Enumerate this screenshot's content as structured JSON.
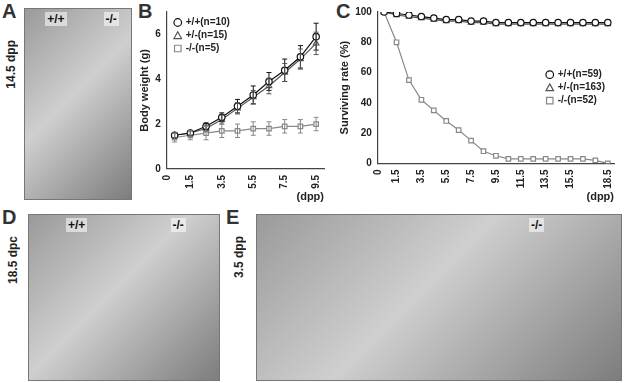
{
  "panels": [
    {
      "letter": "A",
      "caption": "14.5 dpp",
      "labels": [
        "+/+",
        "-/-"
      ]
    },
    {
      "letter": "B"
    },
    {
      "letter": "C"
    },
    {
      "letter": "D",
      "caption": "18.5 dpc",
      "labels": [
        "+/+",
        "-/-"
      ]
    },
    {
      "letter": "E",
      "caption": "3.5 dpp",
      "labels": [
        "-/-"
      ]
    }
  ],
  "chart_data": [
    {
      "type": "line",
      "y_label": "Body weight (g)",
      "x_label": "(dpp)",
      "x": [
        0.5,
        1.5,
        2.5,
        3.5,
        4.5,
        5.5,
        6.5,
        7.5,
        8.5,
        9.5
      ],
      "xlim": [
        0,
        10
      ],
      "xticks": [
        0,
        1.5,
        3.5,
        5.5,
        7.5,
        9.5
      ],
      "ylim": [
        0,
        7
      ],
      "yticks": [
        0,
        2,
        4,
        6
      ],
      "grid": false,
      "legend": "upper left",
      "series": [
        {
          "name": "+/+(n=10)",
          "color": "#111111",
          "marker": "circle",
          "values": [
            1.5,
            1.6,
            1.9,
            2.3,
            2.8,
            3.3,
            3.9,
            4.4,
            5.0,
            5.9
          ],
          "errors": [
            0.1,
            0.1,
            0.15,
            0.2,
            0.3,
            0.4,
            0.4,
            0.5,
            0.5,
            0.6
          ]
        },
        {
          "name": "+/-(n=15)",
          "color": "#555555",
          "marker": "triangle",
          "values": [
            1.5,
            1.6,
            1.8,
            2.2,
            2.7,
            3.2,
            3.7,
            4.3,
            4.9,
            5.6
          ],
          "errors": [
            0.1,
            0.1,
            0.15,
            0.2,
            0.25,
            0.3,
            0.35,
            0.4,
            0.45,
            0.5
          ]
        },
        {
          "name": "-/-(n=5)",
          "color": "#888888",
          "marker": "square",
          "values": [
            1.4,
            1.5,
            1.6,
            1.7,
            1.7,
            1.8,
            1.8,
            1.9,
            1.9,
            2.0
          ],
          "errors": [
            0.2,
            0.2,
            0.3,
            0.3,
            0.3,
            0.3,
            0.3,
            0.3,
            0.3,
            0.3
          ]
        }
      ]
    },
    {
      "type": "line",
      "y_label": "Surviving rate (%)",
      "x_label": "(dpp)",
      "x": [
        0.5,
        1.5,
        2.5,
        3.5,
        4.5,
        5.5,
        6.5,
        7.5,
        8.5,
        9.5,
        10.5,
        11.5,
        12.5,
        13.5,
        14.5,
        15.5,
        16.5,
        17.5,
        18.5
      ],
      "xlim": [
        0,
        19
      ],
      "xticks": [
        0,
        1.5,
        3.5,
        5.5,
        7.5,
        9.5,
        11.5,
        13.5,
        15.5,
        18.5
      ],
      "ylim": [
        0,
        100
      ],
      "yticks": [
        0,
        20,
        40,
        60,
        80,
        100
      ],
      "grid": false,
      "legend": "right",
      "series": [
        {
          "name": "+/+(n=59)",
          "color": "#111111",
          "marker": "circle",
          "values": [
            100,
            99,
            98,
            97,
            96,
            95,
            95,
            94,
            94,
            93,
            93,
            93,
            93,
            93,
            93,
            93,
            93,
            93,
            93
          ]
        },
        {
          "name": "+/-(n=163)",
          "color": "#555555",
          "marker": "triangle",
          "values": [
            100,
            98,
            97,
            96,
            95,
            94,
            94,
            93,
            93,
            92,
            92,
            92,
            92,
            92,
            92,
            92,
            92,
            92,
            92
          ]
        },
        {
          "name": "-/-(n=52)",
          "color": "#888888",
          "marker": "square",
          "values": [
            100,
            80,
            55,
            42,
            35,
            28,
            22,
            15,
            8,
            5,
            3,
            3,
            3,
            3,
            3,
            3,
            3,
            2,
            0
          ]
        }
      ]
    }
  ]
}
